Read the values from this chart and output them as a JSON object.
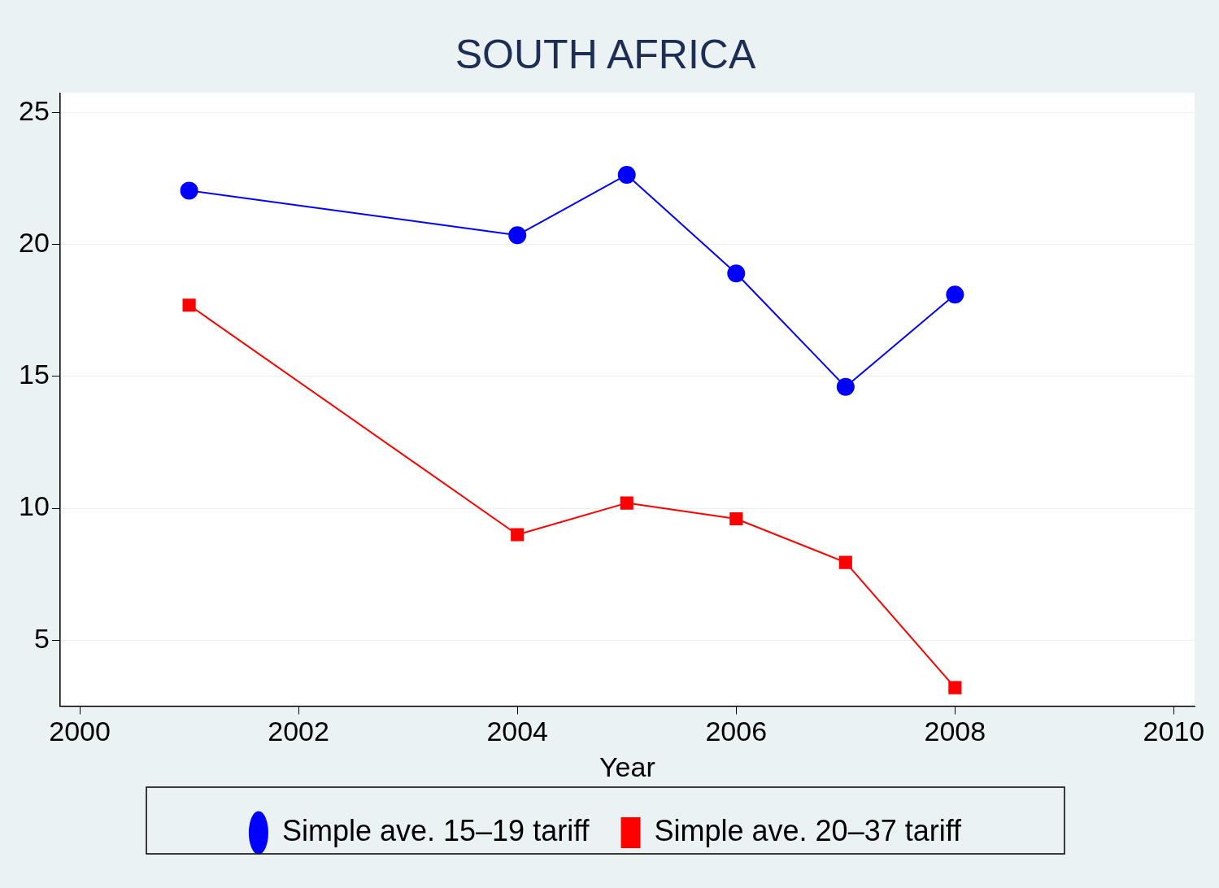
{
  "chart_data": {
    "type": "line",
    "title": "SOUTH AFRICA",
    "xlabel": "Year",
    "x": [
      2001,
      2004,
      2005,
      2006,
      2007,
      2008
    ],
    "series": [
      {
        "name": "Simple ave. 15–19 tariff",
        "color": "#0000ff",
        "marker": "circle",
        "values": [
          22.04,
          20.35,
          22.64,
          18.9,
          14.6,
          18.1
        ]
      },
      {
        "name": "Simple ave. 20–37 tariff",
        "color": "#ff0000",
        "marker": "square",
        "values": [
          17.7,
          9.0,
          10.2,
          9.6,
          7.95,
          3.2
        ]
      }
    ],
    "xlim": [
      1999.82,
      2010.19
    ],
    "xticks": [
      2000,
      2002,
      2004,
      2006,
      2008,
      2010
    ],
    "ylim": [
      2.5,
      25.75
    ],
    "yticks": [
      5,
      10,
      15,
      20,
      25
    ],
    "grid": "y",
    "legend": "bottom",
    "line_style": "solid"
  }
}
